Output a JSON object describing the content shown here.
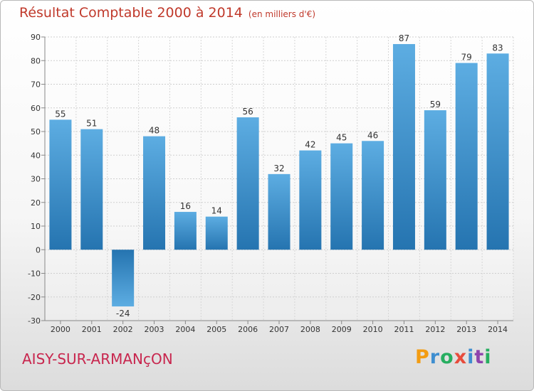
{
  "title": "Résultat Comptable 2000 à 2014",
  "subtitle": "(en milliers d'€)",
  "commune": "AISY-SUR-ARMANçON",
  "logo": {
    "letters": [
      "P",
      "r",
      "o",
      "x",
      "i",
      "t",
      "i"
    ],
    "colors": [
      "#f39c12",
      "#3e8ed0",
      "#27ae60",
      "#e74c3c",
      "#3e8ed0",
      "#8e44ad",
      "#27ae60"
    ]
  },
  "colors": {
    "bar_light": "#5dade2",
    "bar_dark": "#2574b0",
    "title": "#c0392b",
    "commune": "#c8264e"
  },
  "chart_data": {
    "type": "bar",
    "title": "Résultat Comptable 2000 à 2014",
    "subtitle": "(en milliers d'€)",
    "xlabel": "",
    "ylabel": "",
    "categories": [
      "2000",
      "2001",
      "2002",
      "2003",
      "2004",
      "2005",
      "2006",
      "2007",
      "2008",
      "2009",
      "2010",
      "2011",
      "2012",
      "2013",
      "2014"
    ],
    "values": [
      55,
      51,
      -24,
      48,
      16,
      14,
      56,
      32,
      42,
      45,
      46,
      87,
      59,
      79,
      83
    ],
    "ylim": [
      -30,
      90
    ],
    "yticks": [
      -30,
      -20,
      -10,
      0,
      10,
      20,
      30,
      40,
      50,
      60,
      70,
      80,
      90
    ],
    "grid": true,
    "data_labels": true
  }
}
